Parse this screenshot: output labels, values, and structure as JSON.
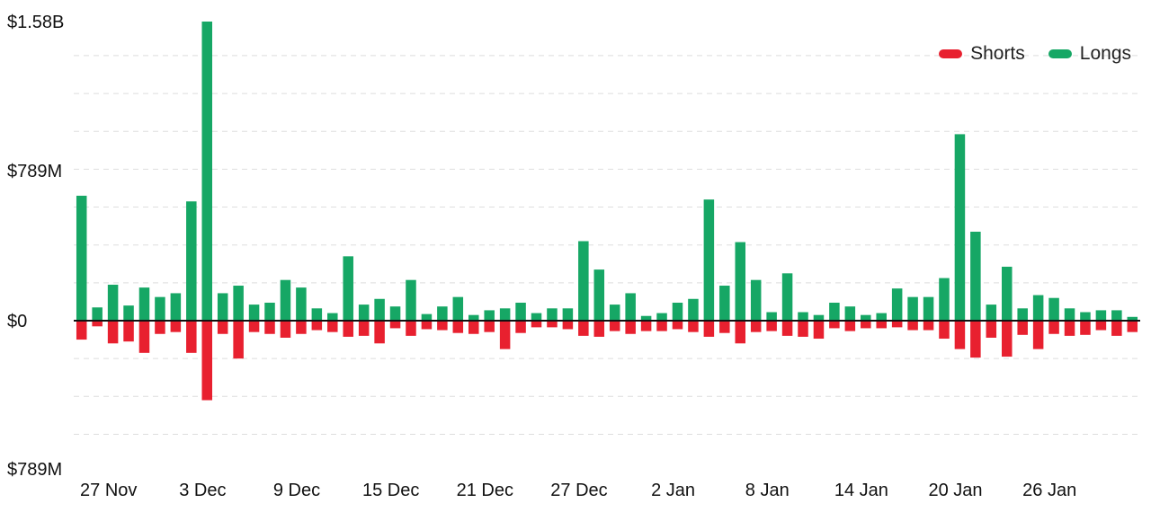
{
  "chart_data": {
    "type": "bar",
    "stacked_diverging": true,
    "y_unit": "USD",
    "ylim": [
      -789000000,
      1580000000
    ],
    "y_tick_labels": [
      "$1.58B",
      "$789M",
      "$0",
      "$789M"
    ],
    "y_tick_values": [
      1580000000,
      789000000,
      0,
      -789000000
    ],
    "x_tick_labels": [
      "27 Nov",
      "3 Dec",
      "9 Dec",
      "15 Dec",
      "21 Dec",
      "27 Dec",
      "2 Jan",
      "8 Jan",
      "14 Jan",
      "20 Jan",
      "26 Jan"
    ],
    "x_tick_indices": [
      0,
      6,
      12,
      18,
      24,
      30,
      36,
      42,
      48,
      54,
      60
    ],
    "grid": true,
    "legend_position": "top-right",
    "series": [
      {
        "name": "Longs",
        "color": "#16a765",
        "values": [
          660,
          70,
          190,
          80,
          175,
          125,
          145,
          630,
          1580,
          145,
          185,
          85,
          95,
          215,
          175,
          65,
          40,
          340,
          85,
          115,
          75,
          215,
          35,
          75,
          125,
          30,
          55,
          65,
          95,
          40,
          65,
          65,
          420,
          270,
          85,
          145,
          25,
          40,
          95,
          115,
          640,
          185,
          415,
          215,
          45,
          250,
          45,
          30,
          95,
          75,
          30,
          40,
          170,
          125,
          125,
          225,
          985,
          470,
          85,
          285,
          65,
          135,
          120,
          65,
          45,
          55,
          55,
          20
        ]
      },
      {
        "name": "Shorts",
        "color": "#e8202f",
        "values": [
          -100,
          -30,
          -120,
          -110,
          -170,
          -70,
          -60,
          -170,
          -420,
          -70,
          -200,
          -60,
          -70,
          -90,
          -70,
          -50,
          -60,
          -85,
          -80,
          -120,
          -40,
          -80,
          -45,
          -50,
          -65,
          -70,
          -60,
          -150,
          -65,
          -35,
          -35,
          -45,
          -80,
          -85,
          -55,
          -70,
          -55,
          -55,
          -45,
          -60,
          -85,
          -65,
          -120,
          -60,
          -55,
          -80,
          -85,
          -95,
          -40,
          -55,
          -40,
          -40,
          -35,
          -50,
          -50,
          -95,
          -150,
          -195,
          -90,
          -190,
          -75,
          -150,
          -70,
          -80,
          -75,
          -50,
          -80,
          -60
        ]
      }
    ]
  }
}
